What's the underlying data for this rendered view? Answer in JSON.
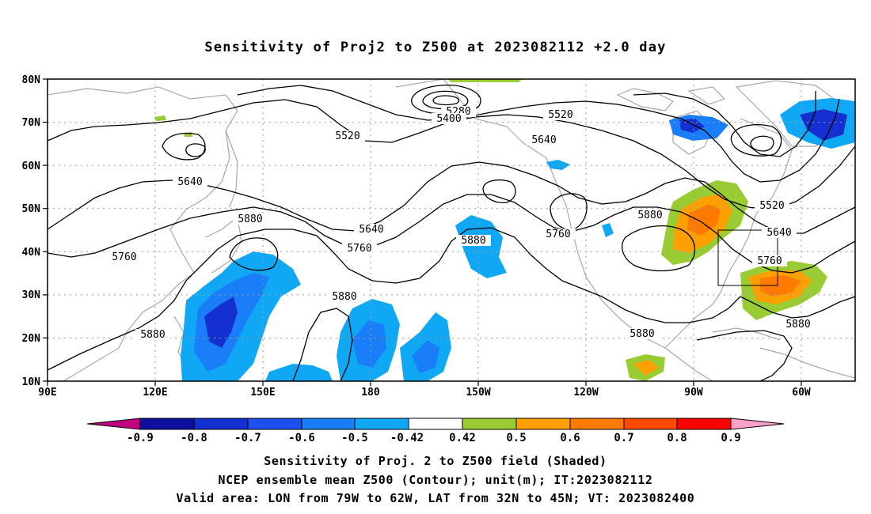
{
  "title": "Sensitivity of Proj2 to Z500 at 2023082112 +2.0 day",
  "axes": {
    "lon_labels": [
      "90E",
      "120E",
      "150E",
      "180",
      "150W",
      "120W",
      "90W",
      "60W"
    ],
    "lat_labels": [
      "10N",
      "20N",
      "30N",
      "40N",
      "50N",
      "60N",
      "70N",
      "80N"
    ],
    "lon_range": [
      "90E",
      "45W"
    ],
    "lat_range": [
      "10N",
      "80N"
    ]
  },
  "contours": {
    "unit": "m",
    "levels": [
      5280,
      5400,
      5520,
      5640,
      5760,
      5880
    ],
    "labels": [
      "5280",
      "5400",
      "5520",
      "5520",
      "5520",
      "5640",
      "5640",
      "5640",
      "5640",
      "5760",
      "5760",
      "5760",
      "5760",
      "5880",
      "5880",
      "5880",
      "5880",
      "5880",
      "5880",
      "5880"
    ]
  },
  "colorbar": {
    "ticks": [
      "-0.9",
      "-0.8",
      "-0.7",
      "-0.6",
      "-0.5",
      "-0.42",
      "0.42",
      "0.5",
      "0.6",
      "0.7",
      "0.8",
      "0.9"
    ],
    "colors": [
      "#c0007f",
      "#1010a0",
      "#1530d0",
      "#1e50f0",
      "#1a7ef8",
      "#10a8f5",
      "#00c8ff",
      "#ffffff",
      "#99cc33",
      "#ffa000",
      "#ff7a00",
      "#ff4a00",
      "#ff0000",
      "#ffa0c8"
    ]
  },
  "valid_box": {
    "lon_min": "79W",
    "lon_max": "62W",
    "lat_min": "32N",
    "lat_max": "45N"
  },
  "captions": {
    "line1": "Sensitivity of Proj. 2 to Z500 field (Shaded)",
    "line2": "NCEP ensemble mean Z500 (Contour); unit(m); IT:2023082112",
    "line3": "Valid area: LON from 79W to 62W, LAT from 32N to 45N; VT: 2023082400"
  }
}
